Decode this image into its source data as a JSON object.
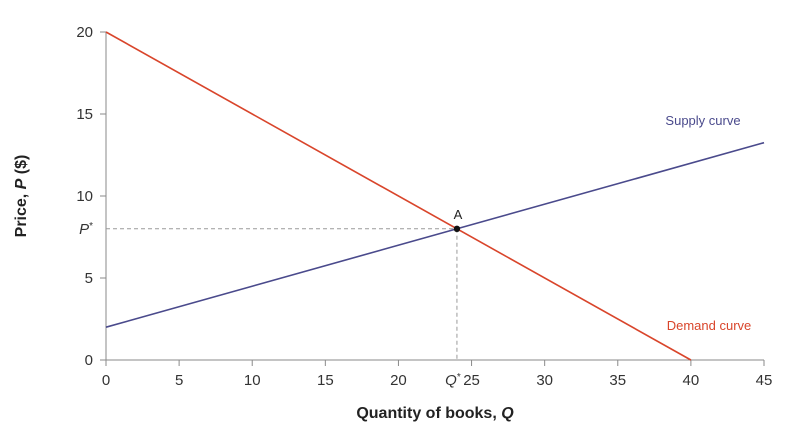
{
  "chart_data": {
    "type": "line",
    "xlabel": "Quantity of books, ",
    "xlabel_var": "Q",
    "ylabel": "Price, ",
    "ylabel_var": "P",
    "ylabel_unit": " ($)",
    "xlim": [
      0,
      45
    ],
    "ylim": [
      0,
      20
    ],
    "xticks": [
      0,
      5,
      10,
      15,
      20,
      25,
      30,
      35,
      40,
      45
    ],
    "yticks": [
      0,
      5,
      10,
      15,
      20
    ],
    "grid": false,
    "series": [
      {
        "name": "Supply curve",
        "color": "#4a4a8c",
        "x": [
          0,
          45
        ],
        "y": [
          2,
          13.25
        ]
      },
      {
        "name": "Demand curve",
        "color": "#d9452b",
        "x": [
          0,
          40
        ],
        "y": [
          20,
          0
        ]
      }
    ],
    "equilibrium": {
      "label": "A",
      "x": 24,
      "y": 8,
      "x_tick_label": "Q",
      "x_tick_sup": "*",
      "y_tick_label": "P",
      "y_tick_sup": "*"
    }
  }
}
